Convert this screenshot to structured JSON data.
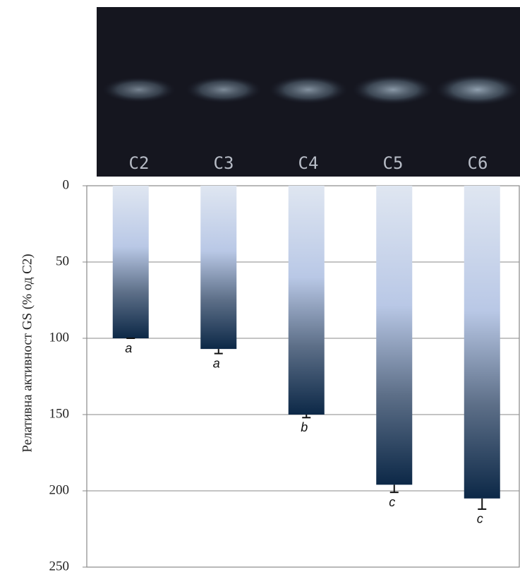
{
  "chart_data": {
    "type": "bar",
    "y_label": "Релативна активност GS (% од C2)",
    "categories": [
      "C2",
      "C3",
      "C4",
      "C5",
      "C6"
    ],
    "values": [
      100,
      107,
      150,
      196,
      205
    ],
    "errors": [
      0,
      3,
      2,
      5,
      7
    ],
    "annotations": [
      "a",
      "a",
      "b",
      "c",
      "c"
    ],
    "ylim": [
      0,
      250
    ],
    "yticks": [
      0,
      50,
      100,
      150,
      200,
      250
    ],
    "y_inverted": true,
    "grid": true
  }
}
